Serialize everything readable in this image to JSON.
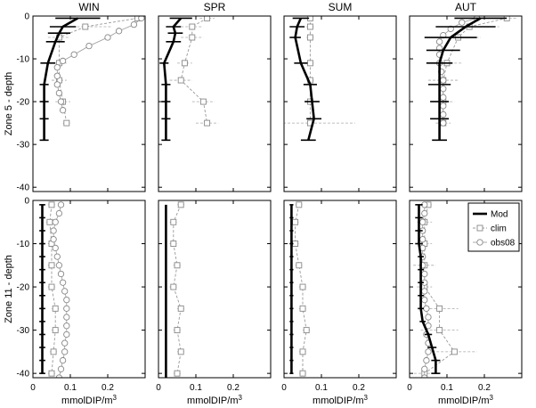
{
  "chart_data": {
    "type": "line",
    "columns": [
      "WIN",
      "SPR",
      "SUM",
      "AUT"
    ],
    "row_labels": [
      "Zone 5 - depth",
      "Zone 11 - depth"
    ],
    "xlabel": "mmolDIP/m",
    "xlabel_sup": "3",
    "xlim": [
      0,
      0.3
    ],
    "x_ticks": [
      "0",
      "0.1",
      "0.2"
    ],
    "rows": [
      {
        "ylim": [
          -41,
          0
        ],
        "y_ticks": [
          "0",
          "-10",
          "-20",
          "-30",
          "-40"
        ]
      },
      {
        "ylim": [
          -41,
          0
        ],
        "y_ticks": [
          "0",
          "-10",
          "-20",
          "-30",
          "-40"
        ]
      }
    ],
    "legend": {
      "position": "top-right",
      "entries": [
        "Mod",
        "clim",
        "obs08"
      ]
    },
    "panels": [
      {
        "row": 0,
        "col": 0,
        "mod": {
          "depth": [
            -0.5,
            -2.5,
            -4,
            -6,
            -11,
            -16,
            -20,
            -24,
            -29
          ],
          "value": [
            0.12,
            0.08,
            0.07,
            0.06,
            0.04,
            0.03,
            0.03,
            0.03,
            0.03
          ],
          "err": [
            0.06,
            0.035,
            0.03,
            0.025,
            0.02,
            0.012,
            0.012,
            0.012,
            0.012
          ]
        },
        "clim": {
          "depth": [
            -0.5,
            -2.5,
            -5,
            -11,
            -15,
            -20,
            -25
          ],
          "value": [
            0.28,
            0.14,
            0.07,
            0.07,
            0.07,
            0.08,
            0.09
          ],
          "err": [
            0.01,
            0.07,
            0.03,
            0.02,
            0.02,
            0.02,
            0.01
          ]
        },
        "obs08": {
          "depth": [
            -0.5,
            -2,
            -3.5,
            -5,
            -7,
            -9,
            -10.5,
            -12,
            -14,
            -16,
            -18,
            -20,
            -22
          ],
          "value": [
            0.29,
            0.27,
            0.23,
            0.2,
            0.15,
            0.11,
            0.08,
            0.065,
            0.065,
            0.065,
            0.07,
            0.075,
            0.08
          ]
        }
      },
      {
        "row": 0,
        "col": 1,
        "mod": {
          "depth": [
            -0.5,
            -2.5,
            -4,
            -6,
            -11,
            -16,
            -20,
            -24,
            -29
          ],
          "value": [
            0.06,
            0.04,
            0.045,
            0.04,
            0.015,
            0.02,
            0.02,
            0.02,
            0.02
          ],
          "err": [
            0.03,
            0.02,
            0.02,
            0.02,
            0.012,
            0.012,
            0.012,
            0.012,
            0.012
          ]
        },
        "clim": {
          "depth": [
            -0.5,
            -2.5,
            -5,
            -11,
            -15,
            -20,
            -25
          ],
          "value": [
            0.13,
            0.09,
            0.09,
            0.07,
            0.06,
            0.12,
            0.13
          ],
          "err": [
            0.02,
            0.03,
            0.03,
            0.02,
            0.03,
            0.03,
            0.03
          ]
        },
        "obs08": {
          "depth": [],
          "value": []
        }
      },
      {
        "row": 0,
        "col": 2,
        "mod": {
          "depth": [
            -0.5,
            -2.5,
            -5,
            -11,
            -16,
            -20,
            -24,
            -29
          ],
          "value": [
            0.045,
            0.035,
            0.03,
            0.045,
            0.07,
            0.075,
            0.08,
            0.065
          ],
          "err": [
            0.022,
            0.02,
            0.015,
            0.018,
            0.018,
            0.02,
            0.02,
            0.02
          ]
        },
        "clim": {
          "depth": [
            -0.5,
            -2.5,
            -5,
            -11,
            -15,
            -20,
            -25
          ],
          "value": [
            0.07,
            0.07,
            0.07,
            0.07,
            0.07,
            0.07,
            0.07
          ],
          "err": [
            0.005,
            0.01,
            0.01,
            0.01,
            0.01,
            0.01,
            0.12
          ]
        },
        "obs08": {
          "depth": [],
          "value": []
        }
      },
      {
        "row": 0,
        "col": 3,
        "mod": {
          "depth": [
            -0.5,
            -2.5,
            -5,
            -8,
            -11,
            -16,
            -20,
            -24,
            -29
          ],
          "value": [
            0.19,
            0.15,
            0.11,
            0.09,
            0.08,
            0.08,
            0.08,
            0.08,
            0.08
          ],
          "err": [
            0.07,
            0.08,
            0.07,
            0.045,
            0.035,
            0.03,
            0.025,
            0.025,
            0.02
          ]
        },
        "clim": {
          "depth": [
            -0.5,
            -2.5,
            -5,
            -11,
            -15,
            -20,
            -25
          ],
          "value": [
            0.26,
            0.16,
            0.13,
            0.1,
            0.09,
            0.09,
            0.09
          ],
          "err": [
            0.03,
            0.08,
            0.06,
            0.04,
            0.04,
            0.03,
            0.02
          ]
        },
        "obs08": {
          "depth": [
            -0.5,
            -1.5,
            -3,
            -4.5,
            -6,
            -7.5,
            -9,
            -11,
            -13,
            -15,
            -17,
            -19,
            -21,
            -23,
            -25
          ],
          "value": [
            0.18,
            0.14,
            0.11,
            0.09,
            0.08,
            0.08,
            0.08,
            0.08,
            0.085,
            0.09,
            0.09,
            0.09,
            0.09,
            0.09,
            0.09
          ]
        }
      },
      {
        "row": 1,
        "col": 0,
        "mod": {
          "depth": [
            -1,
            -4,
            -7,
            -10,
            -13,
            -16,
            -19,
            -22,
            -25,
            -28,
            -31,
            -34,
            -37,
            -40
          ],
          "value": [
            0.025,
            0.025,
            0.025,
            0.025,
            0.025,
            0.025,
            0.025,
            0.025,
            0.025,
            0.025,
            0.025,
            0.025,
            0.025,
            0.025
          ],
          "err": [
            0.008,
            0.008,
            0.008,
            0.008,
            0.008,
            0.008,
            0.008,
            0.008,
            0.008,
            0.008,
            0.008,
            0.008,
            0.008,
            0.008
          ]
        },
        "clim": {
          "depth": [
            -1,
            -5,
            -10,
            -15,
            -20,
            -25,
            -30,
            -35,
            -40
          ],
          "value": [
            0.05,
            0.045,
            0.05,
            0.05,
            0.05,
            0.06,
            0.06,
            0.055,
            0.05
          ],
          "err": [
            0.01,
            0.01,
            0.01,
            0.01,
            0.01,
            0.01,
            0.01,
            0.01,
            0.01
          ]
        },
        "obs08": {
          "depth": [
            -1,
            -3,
            -5,
            -7,
            -9,
            -11,
            -13,
            -15,
            -17,
            -19,
            -21,
            -23,
            -25,
            -27,
            -29,
            -31,
            -33,
            -35,
            -37,
            -39,
            -41
          ],
          "value": [
            0.075,
            0.07,
            0.06,
            0.055,
            0.055,
            0.06,
            0.065,
            0.07,
            0.075,
            0.08,
            0.085,
            0.09,
            0.09,
            0.09,
            0.09,
            0.09,
            0.085,
            0.085,
            0.08,
            0.075,
            0.07
          ]
        }
      },
      {
        "row": 1,
        "col": 1,
        "mod": {
          "depth": [
            -1,
            -41
          ],
          "value": [
            0.02,
            0.02
          ],
          "err": [
            0,
            0
          ]
        },
        "clim": {
          "depth": [
            -1,
            -5,
            -10,
            -15,
            -20,
            -25,
            -30,
            -35,
            -40
          ],
          "value": [
            0.06,
            0.04,
            0.04,
            0.05,
            0.04,
            0.06,
            0.05,
            0.06,
            0.05
          ],
          "err": [
            0.01,
            0.01,
            0.01,
            0.01,
            0.01,
            0.01,
            0.01,
            0.01,
            0.01
          ]
        },
        "obs08": {
          "depth": [],
          "value": []
        }
      },
      {
        "row": 1,
        "col": 2,
        "mod": {
          "depth": [
            -1,
            -4,
            -7,
            -10,
            -13,
            -16,
            -19,
            -22,
            -25,
            -28,
            -31,
            -34,
            -37,
            -40
          ],
          "value": [
            0.02,
            0.02,
            0.02,
            0.02,
            0.02,
            0.02,
            0.02,
            0.02,
            0.02,
            0.02,
            0.02,
            0.02,
            0.02,
            0.02
          ],
          "err": [
            0.005,
            0.005,
            0.005,
            0.005,
            0.005,
            0.005,
            0.005,
            0.005,
            0.005,
            0.005,
            0.005,
            0.005,
            0.005,
            0.005
          ]
        },
        "clim": {
          "depth": [
            -1,
            -5,
            -10,
            -15,
            -20,
            -25,
            -30,
            -35,
            -40
          ],
          "value": [
            0.04,
            0.03,
            0.03,
            0.04,
            0.05,
            0.05,
            0.06,
            0.05,
            0.05
          ],
          "err": [
            0.01,
            0.01,
            0.01,
            0.01,
            0.01,
            0.01,
            0.01,
            0.01,
            0.01
          ]
        },
        "obs08": {
          "depth": [],
          "value": []
        }
      },
      {
        "row": 1,
        "col": 3,
        "mod": {
          "depth": [
            -1,
            -4,
            -7,
            -10,
            -13,
            -16,
            -19,
            -22,
            -25,
            -28,
            -31,
            -34,
            -37,
            -40
          ],
          "value": [
            0.025,
            0.025,
            0.025,
            0.025,
            0.03,
            0.03,
            0.03,
            0.03,
            0.03,
            0.035,
            0.05,
            0.06,
            0.07,
            0.07
          ],
          "err": [
            0.01,
            0.01,
            0.01,
            0.01,
            0.008,
            0.008,
            0.008,
            0.008,
            0.008,
            0.008,
            0.01,
            0.012,
            0.012,
            0.012
          ]
        },
        "clim": {
          "depth": [
            -1,
            -5,
            -10,
            -15,
            -20,
            -25,
            -30,
            -35,
            -40
          ],
          "value": [
            0.05,
            0.04,
            0.04,
            0.04,
            0.04,
            0.08,
            0.08,
            0.12,
            0.04
          ],
          "err": [
            0.01,
            0.02,
            0.02,
            0.03,
            0.02,
            0.05,
            0.05,
            0.06,
            0.04
          ]
        },
        "obs08": {
          "depth": [
            -1,
            -3,
            -5,
            -7,
            -9,
            -11,
            -13,
            -15,
            -17,
            -19,
            -21,
            -23,
            -25,
            -27,
            -29,
            -31,
            -33,
            -35,
            -37,
            -39,
            -41
          ],
          "value": [
            0.04,
            0.04,
            0.035,
            0.035,
            0.035,
            0.035,
            0.035,
            0.035,
            0.04,
            0.04,
            0.04,
            0.04,
            0.045,
            0.05,
            0.05,
            0.045,
            0.05,
            0.05,
            0.045,
            0.04,
            0.04
          ]
        }
      }
    ]
  }
}
